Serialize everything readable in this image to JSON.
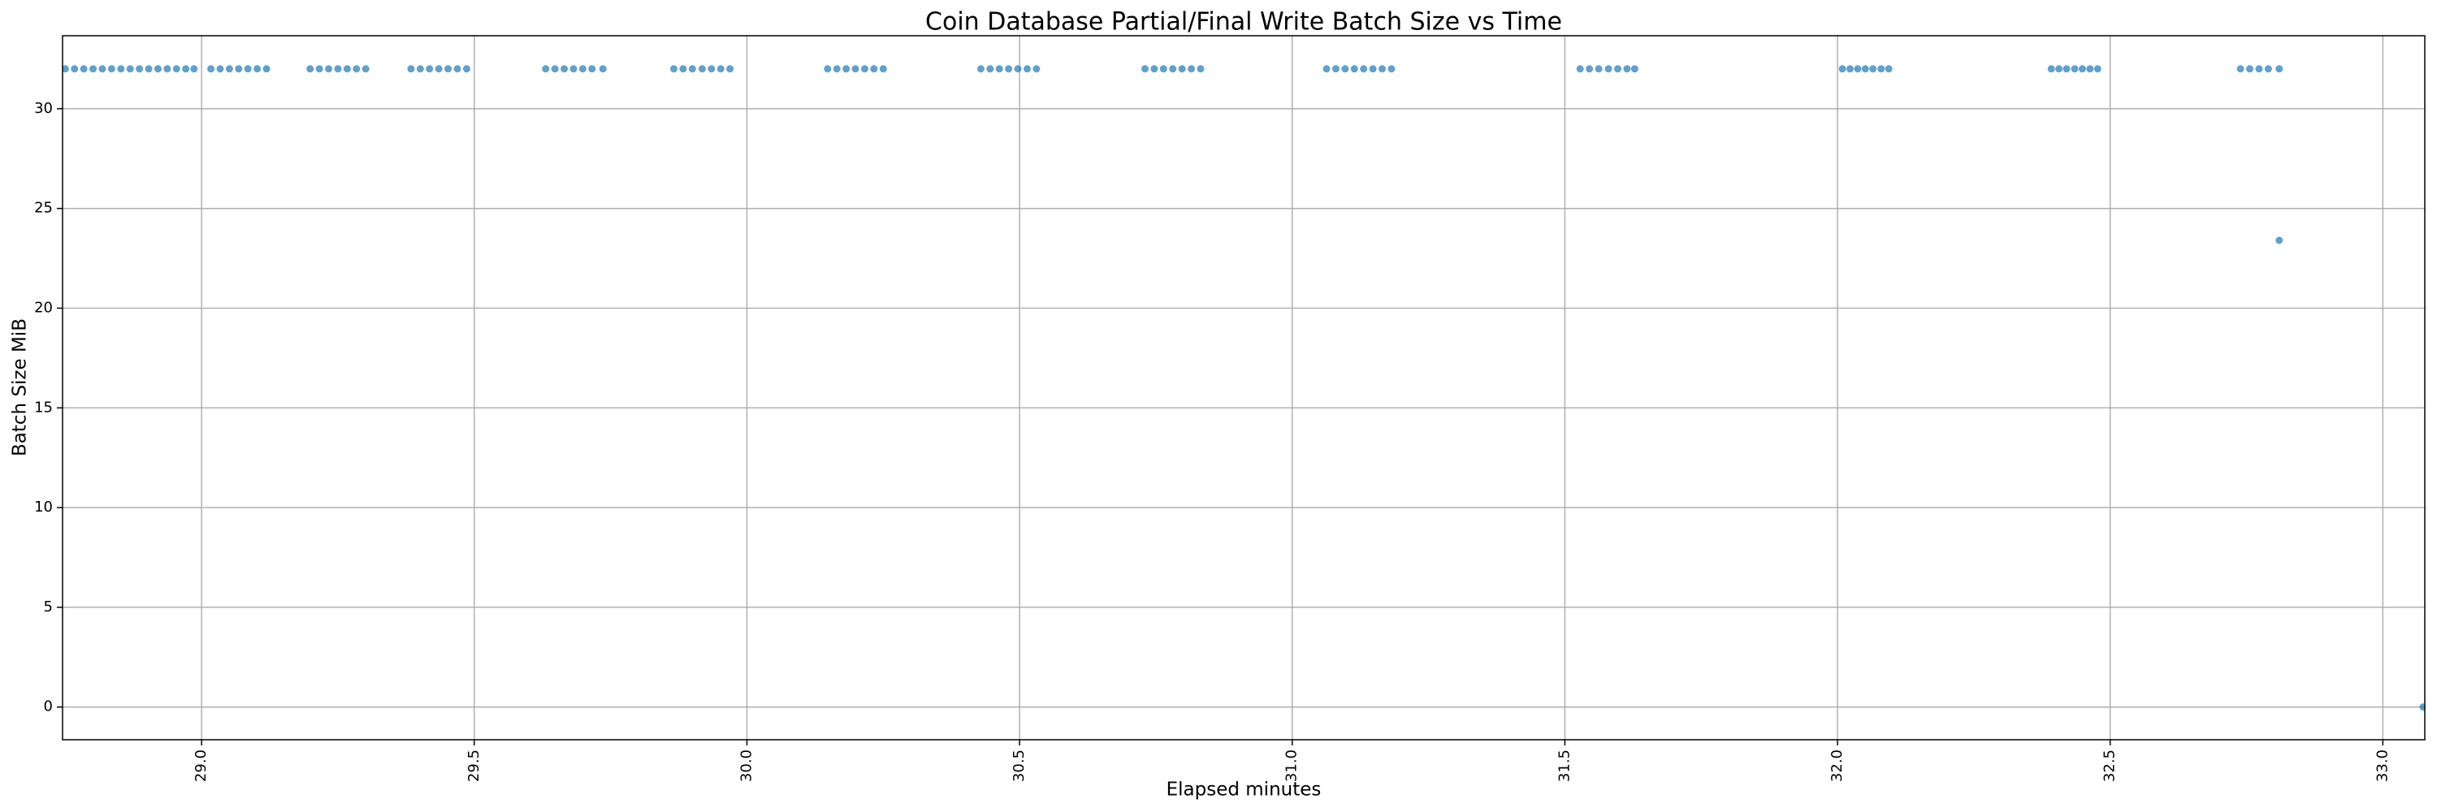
{
  "chart_data": {
    "type": "scatter",
    "title": "Coin Database Partial/Final Write Batch Size vs Time",
    "x_label": "Elapsed minutes",
    "y_label": "Batch Size MiB",
    "color": "#1f77b4",
    "grid": true,
    "xlim": [
      28.745,
      33.077
    ],
    "ylim": [
      -1.64,
      33.66
    ],
    "xticks": [
      {
        "value": 29,
        "label": "29.0"
      },
      29.5,
      {
        "value": 30,
        "label": "30.0"
      },
      30.5,
      {
        "value": 31,
        "label": "31.0"
      },
      31.5,
      {
        "value": 32,
        "label": "32.0"
      },
      32.5,
      {
        "value": 33,
        "label": "33.0"
      }
    ],
    "yticks": [
      0,
      5,
      10,
      15,
      20,
      25,
      30
    ],
    "x": [
      28.75,
      28.767,
      28.784,
      28.801,
      28.818,
      28.835,
      28.852,
      28.869,
      28.886,
      28.903,
      28.92,
      28.937,
      28.954,
      28.971,
      28.986,
      29.017,
      29.034,
      29.051,
      29.068,
      29.085,
      29.102,
      29.119,
      29.199,
      29.216,
      29.233,
      29.25,
      29.267,
      29.284,
      29.301,
      29.384,
      29.401,
      29.418,
      29.435,
      29.452,
      29.469,
      29.486,
      29.631,
      29.648,
      29.665,
      29.682,
      29.699,
      29.716,
      29.736,
      29.866,
      29.883,
      29.9,
      29.918,
      29.935,
      29.952,
      29.969,
      30.148,
      30.165,
      30.182,
      30.199,
      30.216,
      30.233,
      30.25,
      30.429,
      30.446,
      30.463,
      30.48,
      30.497,
      30.514,
      30.531,
      30.73,
      30.747,
      30.764,
      30.781,
      30.798,
      30.815,
      30.832,
      31.063,
      31.08,
      31.097,
      31.114,
      31.131,
      31.148,
      31.165,
      31.182,
      31.528,
      31.545,
      31.562,
      31.58,
      31.597,
      31.614,
      31.628,
      32.009,
      32.023,
      32.037,
      32.051,
      32.065,
      32.08,
      32.094,
      32.392,
      32.406,
      32.42,
      32.435,
      32.449,
      32.463,
      32.477,
      32.739,
      32.756,
      32.773,
      32.79,
      32.81,
      32.81,
      33.074
    ],
    "y": [
      32,
      32,
      32,
      32,
      32,
      32,
      32,
      32,
      32,
      32,
      32,
      32,
      32,
      32,
      32,
      32,
      32,
      32,
      32,
      32,
      32,
      32,
      32,
      32,
      32,
      32,
      32,
      32,
      32,
      32,
      32,
      32,
      32,
      32,
      32,
      32,
      32,
      32,
      32,
      32,
      32,
      32,
      32,
      32,
      32,
      32,
      32,
      32,
      32,
      32,
      32,
      32,
      32,
      32,
      32,
      32,
      32,
      32,
      32,
      32,
      32,
      32,
      32,
      32,
      32,
      32,
      32,
      32,
      32,
      32,
      32,
      32,
      32,
      32,
      32,
      32,
      32,
      32,
      32,
      32,
      32,
      32,
      32,
      32,
      32,
      32,
      32,
      32,
      32,
      32,
      32,
      32,
      32,
      32,
      32,
      32,
      32,
      32,
      32,
      32,
      32,
      32,
      32,
      32,
      32,
      23.4,
      0
    ]
  }
}
